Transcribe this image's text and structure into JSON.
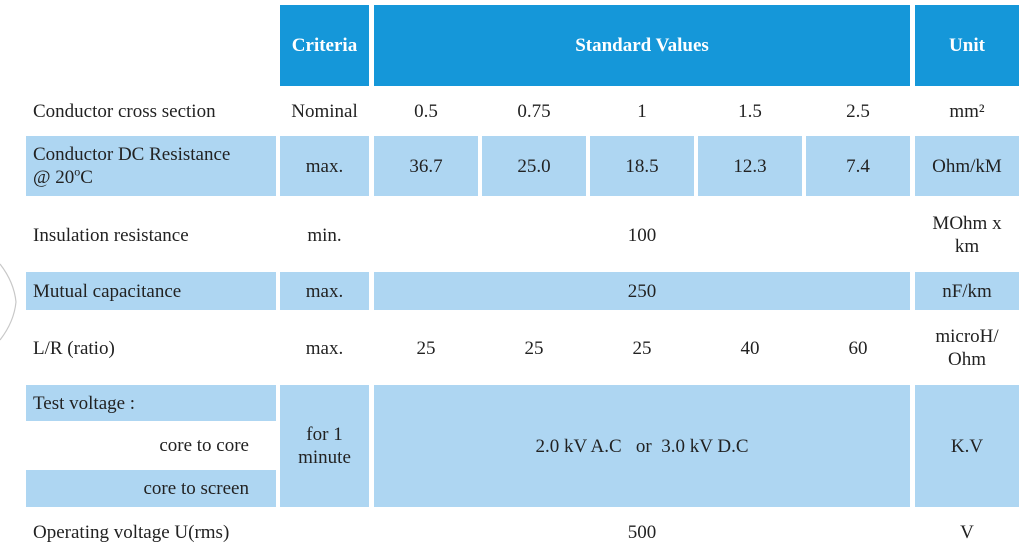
{
  "header": {
    "criteria": "Criteria",
    "standard_values": "Standard Values",
    "unit": "Unit"
  },
  "rows": {
    "cross_section": {
      "label": "Conductor cross section",
      "criteria": "Nominal",
      "values": [
        "0.5",
        "0.75",
        "1",
        "1.5",
        "2.5"
      ],
      "unit": "mm²"
    },
    "dc_resistance": {
      "label_line1": "Conductor DC Resistance",
      "label_line2_prefix": "@ 20",
      "label_line2_sup": "o",
      "label_line2_suffix": "C",
      "criteria": "max.",
      "values": [
        "36.7",
        "25.0",
        "18.5",
        "12.3",
        "7.4"
      ],
      "unit": "Ohm/kM"
    },
    "insulation": {
      "label": "Insulation resistance",
      "criteria": "min.",
      "value": "100",
      "unit_line1": "MOhm x",
      "unit_line2": "km"
    },
    "capacitance": {
      "label": "Mutual capacitance",
      "criteria": "max.",
      "value": "250",
      "unit": "nF/km"
    },
    "lr_ratio": {
      "label": "L/R (ratio)",
      "criteria": "max.",
      "values": [
        "25",
        "25",
        "25",
        "40",
        "60"
      ],
      "unit_line1": "microH/",
      "unit_line2": "Ohm"
    },
    "test_voltage": {
      "label": "Test voltage :",
      "sub1": "core to core",
      "sub2": "core to screen",
      "criteria_line1": "for 1",
      "criteria_line2": "minute",
      "value": "2.0 kV A.C   or  3.0 kV D.C",
      "unit": "K.V"
    },
    "operating": {
      "label": "Operating voltage  U(rms)",
      "value": "500",
      "unit": "V"
    }
  }
}
